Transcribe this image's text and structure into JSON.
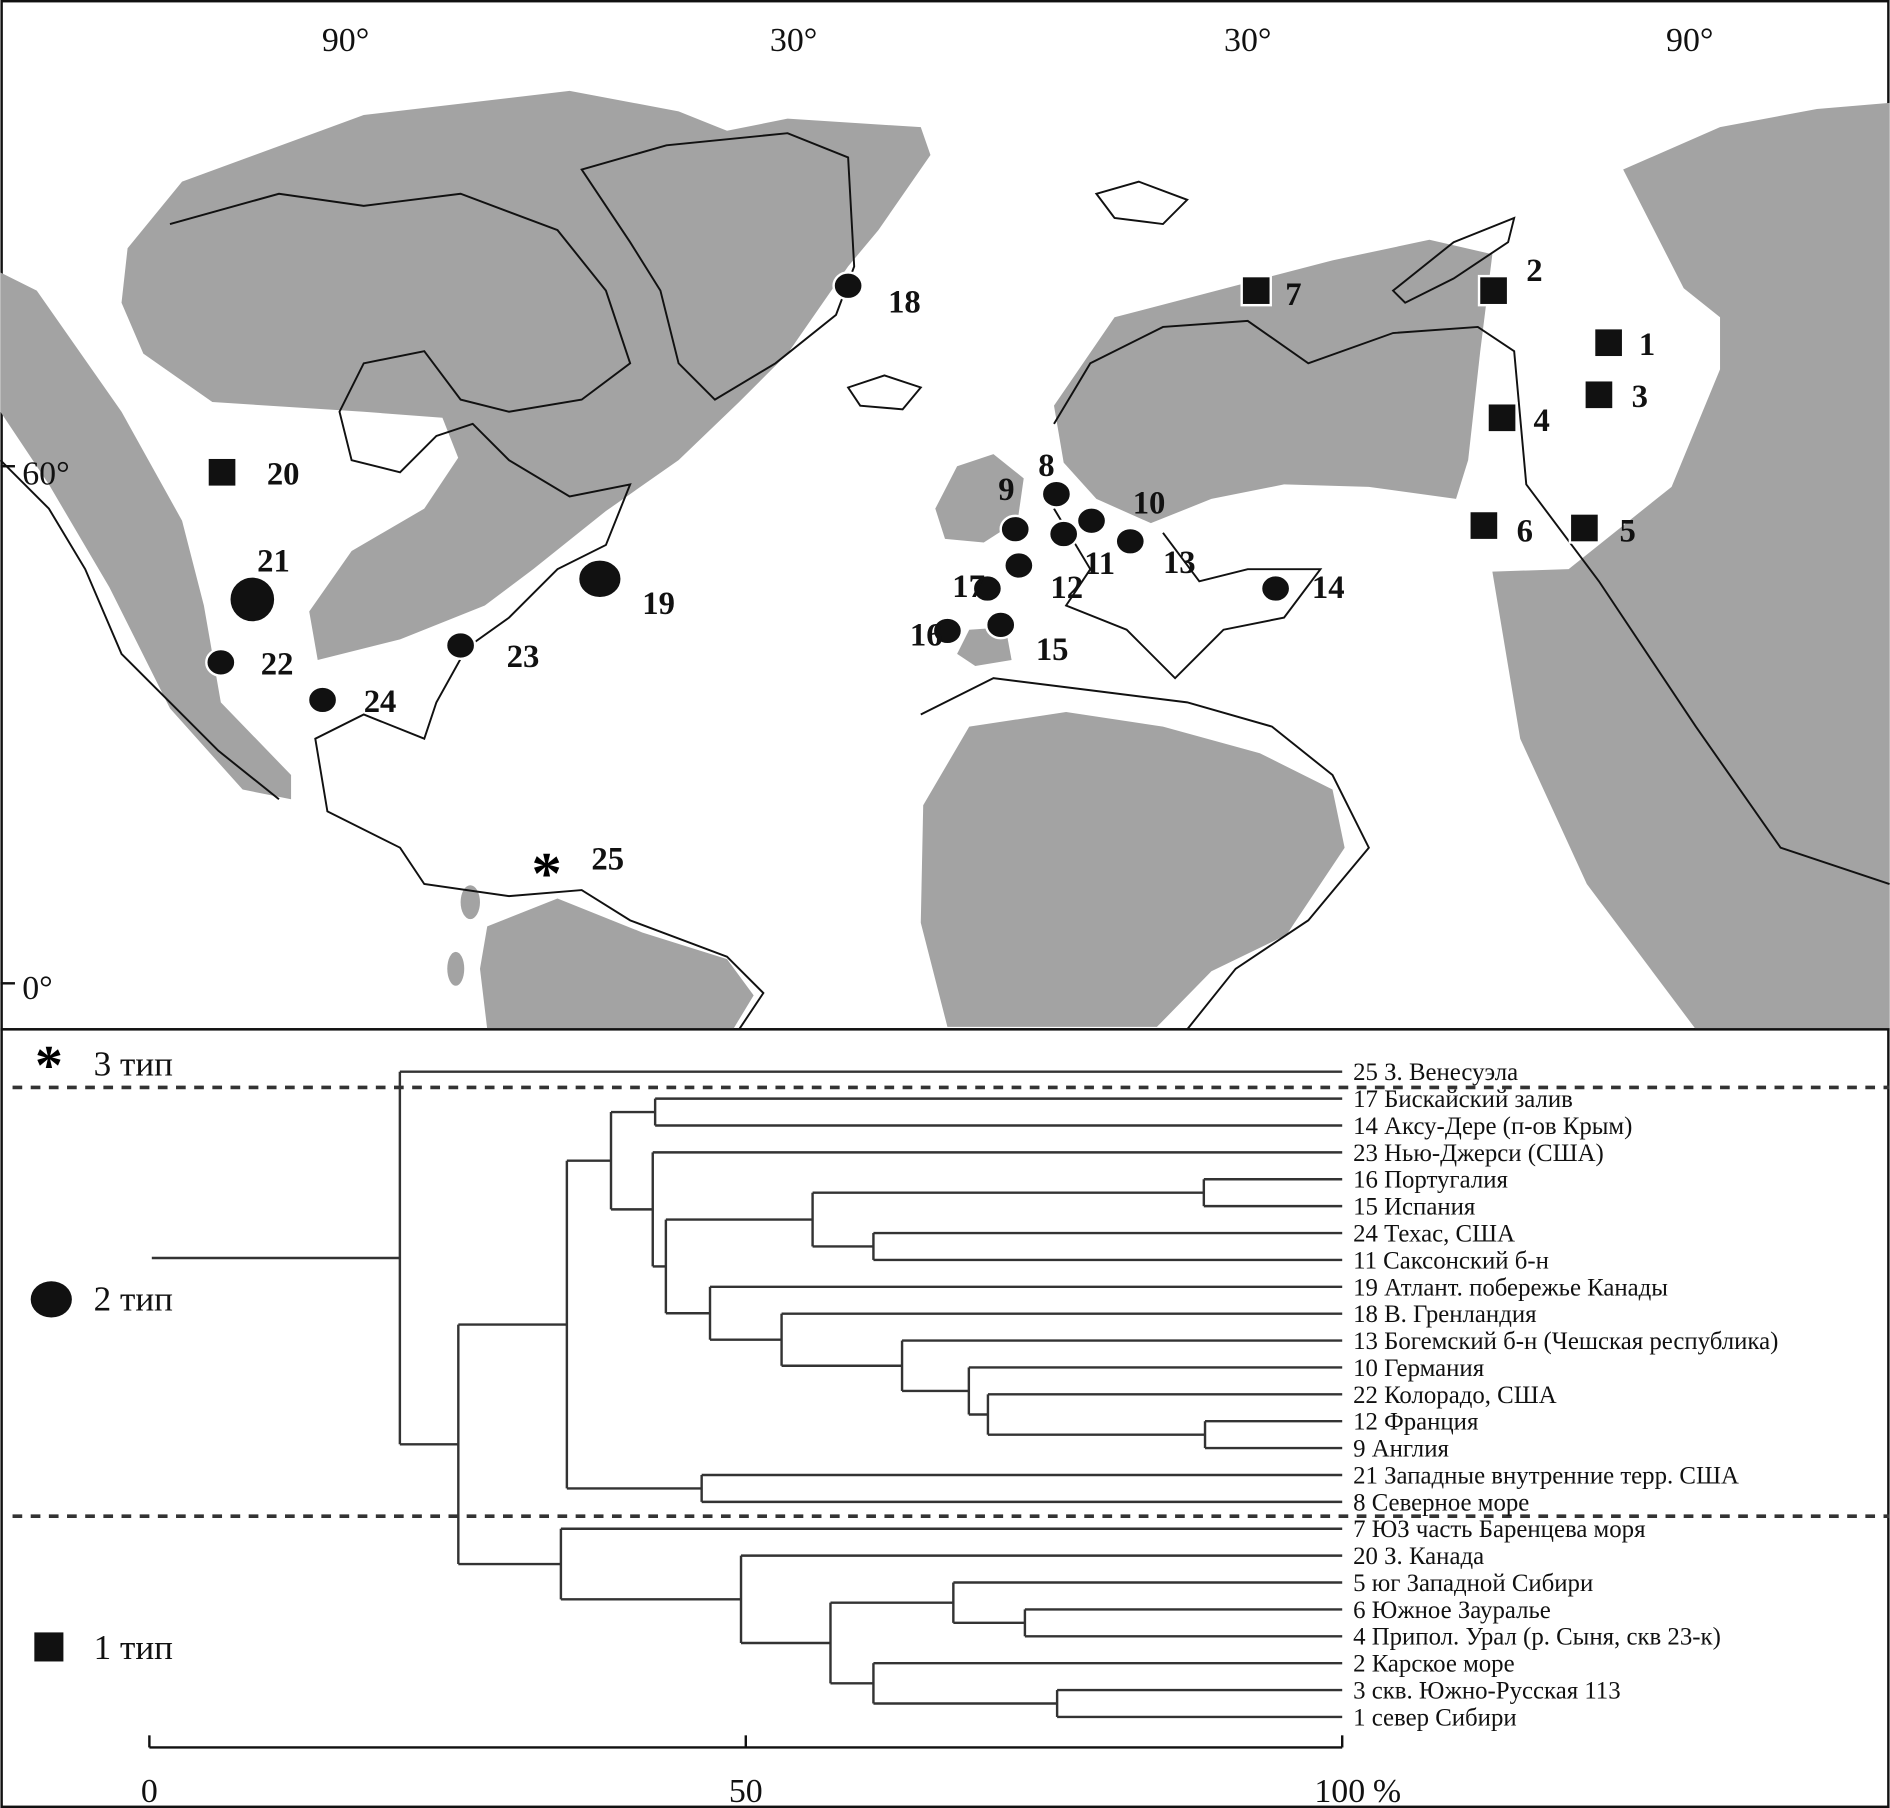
{
  "map": {
    "lon_labels": [
      "90°",
      "30°",
      "30°",
      "90°"
    ],
    "lat_labels": [
      "60°",
      "0°"
    ],
    "land_color": "#a3a3a3",
    "sites": [
      {
        "id": "1",
        "type": 1
      },
      {
        "id": "2",
        "type": 1
      },
      {
        "id": "3",
        "type": 1
      },
      {
        "id": "4",
        "type": 1
      },
      {
        "id": "5",
        "type": 1
      },
      {
        "id": "6",
        "type": 1
      },
      {
        "id": "7",
        "type": 1
      },
      {
        "id": "20",
        "type": 1
      },
      {
        "id": "8",
        "type": 2
      },
      {
        "id": "9",
        "type": 2
      },
      {
        "id": "10",
        "type": 2
      },
      {
        "id": "11",
        "type": 2
      },
      {
        "id": "12",
        "type": 2
      },
      {
        "id": "13",
        "type": 2
      },
      {
        "id": "14",
        "type": 2
      },
      {
        "id": "15",
        "type": 2
      },
      {
        "id": "16",
        "type": 2
      },
      {
        "id": "17",
        "type": 2
      },
      {
        "id": "18",
        "type": 2
      },
      {
        "id": "19",
        "type": 2
      },
      {
        "id": "21",
        "type": 2
      },
      {
        "id": "22",
        "type": 2
      },
      {
        "id": "23",
        "type": 2
      },
      {
        "id": "24",
        "type": 2
      },
      {
        "id": "25",
        "type": 3
      }
    ]
  },
  "legend": [
    {
      "symbol": "asterisk",
      "label": "3 тип"
    },
    {
      "symbol": "ellipse",
      "label": "2 тип"
    },
    {
      "symbol": "square",
      "label": "1 тип"
    }
  ],
  "dendrogram": {
    "axis": {
      "ticks": [
        "0",
        "50",
        "100"
      ],
      "unit": "%",
      "range": [
        0,
        100
      ]
    },
    "leaves": {
      "25": "25 З. Венесуэла",
      "17": "17 Бискайский залив",
      "14": "14 Аксу-Дере (п-ов Крым)",
      "23": "23 Нью-Джерси (США)",
      "16": "16 Португалия",
      "15": "15 Испания",
      "24": "24 Техас, США",
      "11": "11 Саксонский б-н",
      "19": "19 Атлант. побережье Канады",
      "18": "18 В. Гренландия",
      "13": "13 Богемский б-н (Чешская республика)",
      "10": "10 Германия",
      "22": "22 Колорадо, США",
      "12": "12 Франция",
      "9": "9 Англия",
      "21": "21 Западные внутренние терр. США",
      "8": "8 Северное море",
      "7": "7 ЮЗ часть Баренцева моря",
      "20": "20 З. Канада",
      "5": "5 юг Западной Сибири",
      "6": "6 Южное Зауралье",
      "4": "4 Припол. Урал (р. Сыня, скв 23-к)",
      "2": "2 Карское море",
      "3": "3 скв. Южно-Русская 113",
      "1": "1 север Сибири"
    },
    "tree": {
      "h": 21.0,
      "c": [
        "25",
        {
          "h": 25.9,
          "c": [
            {
              "h": 35.0,
              "c": [
                {
                  "h": 38.7,
                  "c": [
                    {
                      "h": 42.4,
                      "c": [
                        "17",
                        "14"
                      ]
                    },
                    {
                      "h": 42.2,
                      "c": [
                        "23",
                        {
                          "h": 43.3,
                          "c": [
                            {
                              "h": 55.6,
                              "c": [
                                {
                                  "h": 88.4,
                                  "c": [
                                    "16",
                                    "15"
                                  ]
                                },
                                {
                                  "h": 60.7,
                                  "c": [
                                    "24",
                                    "11"
                                  ]
                                }
                              ]
                            },
                            {
                              "h": 47.0,
                              "c": [
                                "19",
                                {
                                  "h": 53.0,
                                  "c": [
                                    "18",
                                    {
                                      "h": 63.1,
                                      "c": [
                                        "13",
                                        {
                                          "h": 68.7,
                                          "c": [
                                            "10",
                                            {
                                              "h": 70.3,
                                              "c": [
                                                "22",
                                                {
                                                  "h": 88.5,
                                                  "c": [
                                                    "12",
                                                    "9"
                                                  ]
                                                }
                                              ]
                                            }
                                          ]
                                        }
                                      ]
                                    }
                                  ]
                                }
                              ]
                            }
                          ]
                        }
                      ]
                    }
                  ]
                },
                {
                  "h": 46.3,
                  "c": [
                    "21",
                    "8"
                  ]
                }
              ]
            },
            {
              "h": 34.5,
              "c": [
                "7",
                {
                  "h": 49.6,
                  "c": [
                    "20",
                    {
                      "h": 57.1,
                      "c": [
                        {
                          "h": 67.4,
                          "c": [
                            "5",
                            {
                              "h": 73.4,
                              "c": [
                                "6",
                                "4"
                              ]
                            }
                          ]
                        },
                        {
                          "h": 60.7,
                          "c": [
                            "2",
                            {
                              "h": 76.1,
                              "c": [
                                "3",
                                "1"
                              ]
                            }
                          ]
                        }
                      ]
                    }
                  ]
                }
              ]
            }
          ]
        }
      ]
    }
  }
}
